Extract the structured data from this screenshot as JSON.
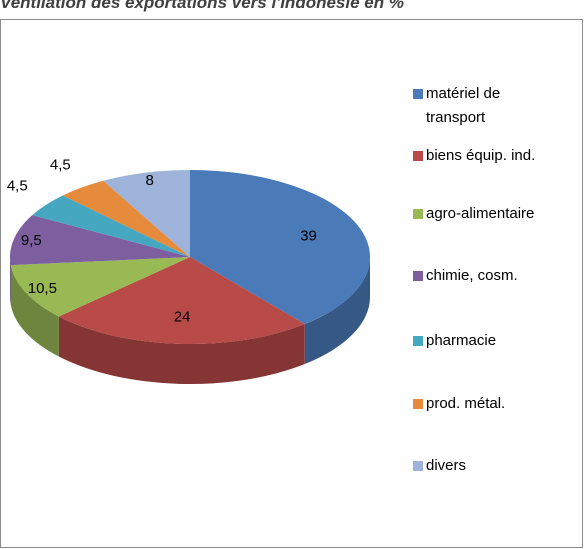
{
  "chart_data": {
    "type": "pie",
    "title": "Ventilation des exportations vers l'Indonésie en %",
    "categories": [
      "matériel de transport",
      "biens équip. ind.",
      "agro-alimentaire",
      "chimie, cosm.",
      "pharmacie",
      "prod. métal.",
      "divers"
    ],
    "values": [
      39,
      24,
      10.5,
      9.5,
      4.5,
      4.5,
      8
    ],
    "value_labels": [
      "39",
      "24",
      "10,5",
      "9,5",
      "4,5",
      "4,5",
      "8"
    ],
    "colors": [
      "#4a7ab8",
      "#b84a48",
      "#98b954",
      "#7d5fa0",
      "#46a7c1",
      "#e68a3c",
      "#9db3d9"
    ],
    "legend": "right"
  }
}
